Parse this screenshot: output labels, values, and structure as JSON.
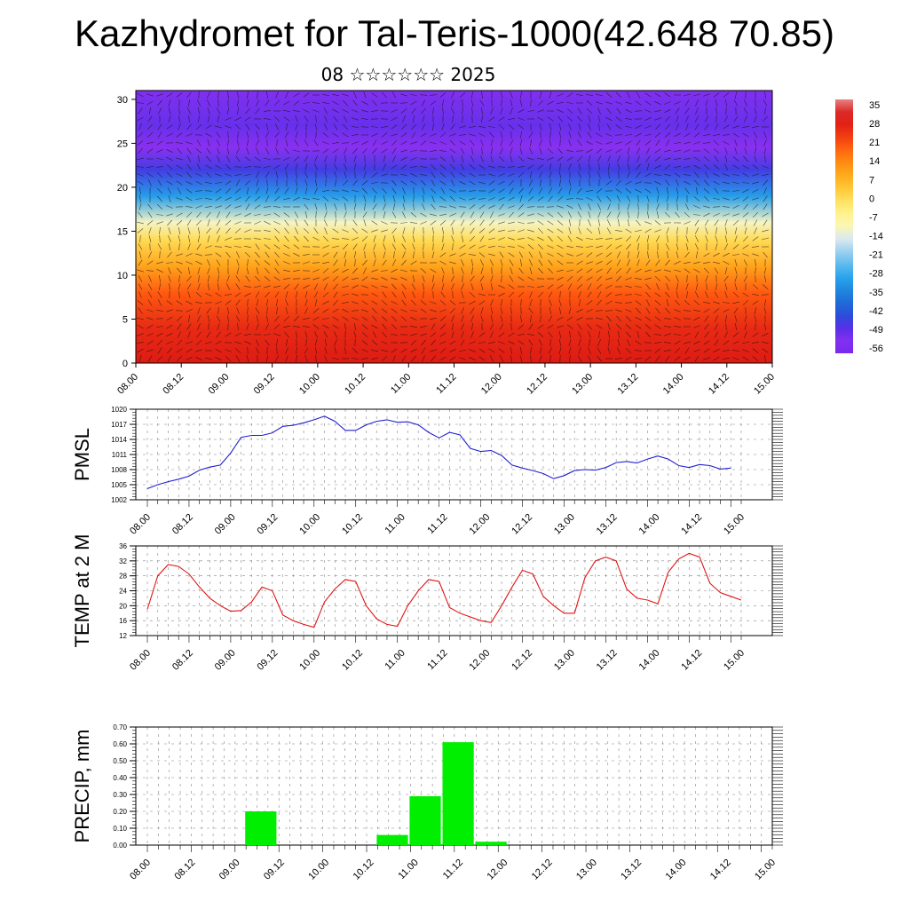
{
  "header": {
    "title": "Kazhydromet for Tal-Teris-1000(42.648 70.85)",
    "subtitle": "08 ☆☆☆☆☆☆ 2025"
  },
  "chart_data": [
    {
      "type": "heatmap",
      "name": "vertical-temperature-section",
      "x_tick_labels": [
        "08.00",
        "08.12",
        "09.00",
        "09.12",
        "10.00",
        "10.12",
        "11.00",
        "11.12",
        "12.00",
        "12.12",
        "13.00",
        "13.12",
        "14.00",
        "14.12",
        "15.00"
      ],
      "y_ticks": [
        0,
        5,
        10,
        15,
        20,
        25,
        30
      ],
      "ylim": [
        0,
        31
      ],
      "colorbar_labels": [
        "35",
        "28",
        "21",
        "14",
        "7",
        "0",
        "-7",
        "-14",
        "-21",
        "-28",
        "-35",
        "-42",
        "-49",
        "-56"
      ],
      "colorbar_range": [
        -60,
        38
      ],
      "colors": {
        "hot": "#d81414",
        "warm": "#ff9a10",
        "neutral": "#fff080",
        "cool": "#8ccaf0",
        "cold": "#2850d8",
        "coldest": "#8a30f0"
      },
      "temperature_profile": [
        {
          "level": 0,
          "temp": 30
        },
        {
          "level": 4,
          "temp": 26
        },
        {
          "level": 8,
          "temp": 20
        },
        {
          "level": 11,
          "temp": 10
        },
        {
          "level": 14,
          "temp": 0
        },
        {
          "level": 16,
          "temp": -12
        },
        {
          "level": 19,
          "temp": -32
        },
        {
          "level": 22,
          "temp": -48
        },
        {
          "level": 24.5,
          "temp": -56
        },
        {
          "level": 27,
          "temp": -52
        },
        {
          "level": 31,
          "temp": -55
        }
      ],
      "grid": false
    },
    {
      "type": "line",
      "ylabel": "PMSL",
      "y_ticks": [
        "1020",
        "1017",
        "1014",
        "1011",
        "1008",
        "1005",
        "1002"
      ],
      "ylim": [
        1002,
        1020
      ],
      "x_tick_labels": [
        "08.00",
        "08.12",
        "09.00",
        "09.12",
        "10.00",
        "10.12",
        "11.00",
        "11.12",
        "12.00",
        "12.12",
        "13.00",
        "13.12",
        "14.00",
        "14.12",
        "15.00"
      ],
      "line_color": "#1f1fd0",
      "grid": true,
      "values": [
        1004.2,
        1005.0,
        1005.6,
        1006.1,
        1006.7,
        1007.9,
        1008.5,
        1008.9,
        1011.3,
        1014.4,
        1014.8,
        1014.8,
        1015.3,
        1016.6,
        1016.8,
        1017.3,
        1017.9,
        1018.6,
        1017.6,
        1015.8,
        1015.8,
        1016.9,
        1017.6,
        1017.9,
        1017.4,
        1017.5,
        1016.9,
        1015.4,
        1014.3,
        1015.4,
        1014.9,
        1012.2,
        1011.6,
        1011.8,
        1010.8,
        1008.9,
        1008.3,
        1007.8,
        1007.2,
        1006.2,
        1006.8,
        1007.8,
        1008.0,
        1007.9,
        1008.4,
        1009.4,
        1009.6,
        1009.3,
        1010.1,
        1010.7,
        1010.1,
        1008.8,
        1008.4,
        1009.0,
        1008.8,
        1008.1,
        1008.3
      ]
    },
    {
      "type": "line",
      "ylabel": "TEMP at 2 M",
      "y_ticks": [
        "36",
        "32",
        "28",
        "24",
        "20",
        "16",
        "12"
      ],
      "ylim": [
        12,
        36
      ],
      "x_tick_labels": [
        "08.00",
        "08.12",
        "09.00",
        "09.12",
        "10.00",
        "10.12",
        "11.00",
        "11.12",
        "12.00",
        "12.12",
        "13.00",
        "13.12",
        "14.00",
        "14.12",
        "15.00"
      ],
      "line_color": "#e01515",
      "grid": true,
      "values": [
        19.0,
        28.0,
        31.0,
        30.5,
        28.5,
        25.0,
        22.0,
        20.0,
        18.5,
        18.7,
        21.0,
        25.0,
        24.0,
        17.5,
        16.0,
        15.0,
        14.2,
        21.0,
        24.5,
        27.0,
        26.5,
        20.0,
        16.5,
        15.0,
        14.5,
        20.0,
        24.0,
        27.0,
        26.5,
        19.5,
        18.0,
        17.0,
        16.0,
        15.5,
        20.0,
        25.0,
        29.5,
        28.5,
        22.5,
        20.0,
        18.0,
        18.0,
        27.5,
        32.0,
        33.0,
        32.0,
        24.5,
        22.0,
        21.5,
        20.5,
        29.0,
        32.5,
        34.0,
        33.0,
        26.0,
        23.5,
        22.5,
        21.5
      ]
    },
    {
      "type": "bar",
      "ylabel": "PRECIP, mm",
      "y_ticks": [
        "0.70",
        "0.60",
        "0.50",
        "0.40",
        "0.30",
        "0.20",
        "0.10",
        "0.00"
      ],
      "ylim": [
        0,
        0.7
      ],
      "x_tick_labels": [
        "08.00",
        "08.12",
        "09.00",
        "09.12",
        "10.00",
        "10.12",
        "11.00",
        "11.12",
        "12.00",
        "12.12",
        "13.00",
        "13.12",
        "14.00",
        "14.12",
        "15.00"
      ],
      "bar_color": "#00ee00",
      "grid": true,
      "bars": [
        {
          "t": 9,
          "value": 0.2
        },
        {
          "t": 21,
          "value": 0.06
        },
        {
          "t": 24,
          "value": 0.29
        },
        {
          "t": 27,
          "value": 0.61
        },
        {
          "t": 30,
          "value": 0.02
        }
      ]
    }
  ]
}
